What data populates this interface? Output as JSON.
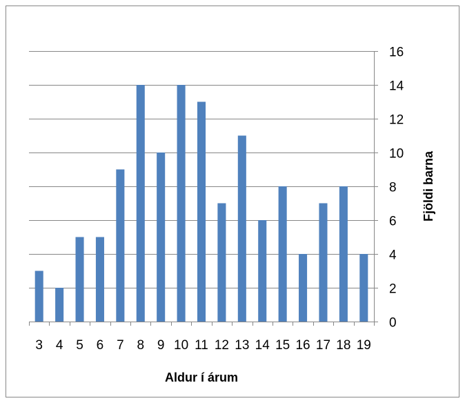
{
  "chart_data": {
    "type": "bar",
    "categories": [
      "3",
      "4",
      "5",
      "6",
      "7",
      "8",
      "9",
      "10",
      "11",
      "12",
      "13",
      "14",
      "15",
      "16",
      "17",
      "18",
      "19"
    ],
    "values": [
      3,
      2,
      5,
      5,
      9,
      14,
      10,
      14,
      13,
      7,
      11,
      6,
      8,
      4,
      7,
      8,
      4
    ],
    "xlabel": "Aldur í árum",
    "ylabel": "Fjöldi barna",
    "ylim": [
      0,
      16
    ],
    "yticks": [
      0,
      2,
      4,
      6,
      8,
      10,
      12,
      14,
      16
    ],
    "y_axis_side": "right",
    "grid": true,
    "legend": "none",
    "bar_color": "#4F81BD",
    "grid_color": "#868686",
    "border_color": "#868686"
  }
}
